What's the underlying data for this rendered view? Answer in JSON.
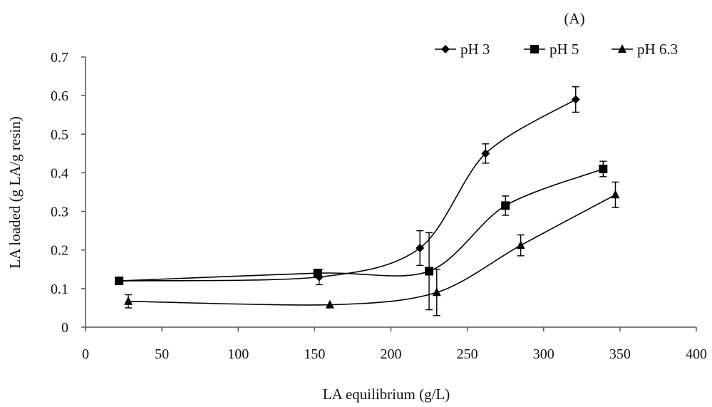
{
  "chart_data": {
    "type": "line",
    "panel_label": "(A)",
    "xlabel": "LA equilibrium (g/L)",
    "ylabel": "LA loaded (g LA/g resin)",
    "xlim": [
      0,
      400
    ],
    "ylim": [
      0,
      0.7
    ],
    "xticks": [
      0,
      50,
      100,
      150,
      200,
      250,
      300,
      350,
      400
    ],
    "yticks": [
      0,
      0.1,
      0.2,
      0.3,
      0.4,
      0.5,
      0.6,
      0.7
    ],
    "xtick_labels": [
      "0",
      "50",
      "100",
      "150",
      "200",
      "250",
      "300",
      "350",
      "400"
    ],
    "ytick_labels": [
      "0",
      "0.1",
      "0.2",
      "0.3",
      "0.4",
      "0.5",
      "0.6",
      "0.7"
    ],
    "grid": false,
    "legend_position": "top-right",
    "series": [
      {
        "name": "pH 3",
        "marker": "diamond",
        "color": "#000000",
        "x": [
          22,
          153,
          219,
          262,
          321
        ],
        "y": [
          0.12,
          0.13,
          0.205,
          0.45,
          0.59
        ],
        "err": [
          0.0,
          0.02,
          0.045,
          0.025,
          0.033
        ]
      },
      {
        "name": "pH 5",
        "marker": "square",
        "color": "#000000",
        "x": [
          22,
          152,
          225,
          275,
          339
        ],
        "y": [
          0.12,
          0.14,
          0.145,
          0.315,
          0.41
        ],
        "err": [
          0.0,
          0.0,
          0.1,
          0.025,
          0.02
        ]
      },
      {
        "name": "pH 6.3",
        "marker": "triangle",
        "color": "#000000",
        "x": [
          28,
          160,
          230,
          285,
          347
        ],
        "y": [
          0.067,
          0.058,
          0.09,
          0.212,
          0.343
        ],
        "err": [
          0.017,
          0.0,
          0.06,
          0.027,
          0.033
        ]
      }
    ]
  }
}
